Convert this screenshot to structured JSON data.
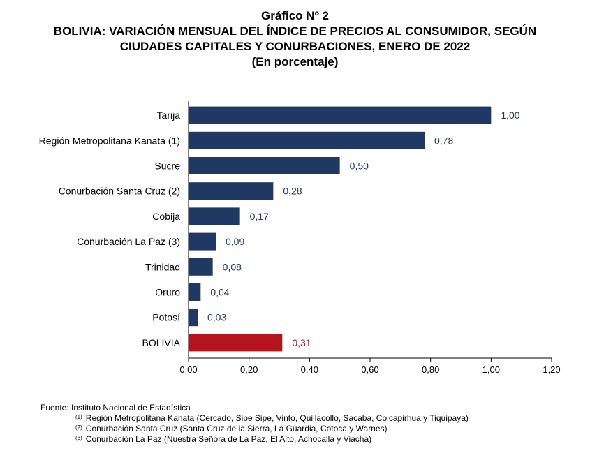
{
  "header": {
    "line1": "Gráfico Nº 2",
    "line2": "BOLIVIA: VARIACIÓN MENSUAL DEL ÍNDICE DE PRECIOS AL CONSUMIDOR, SEGÚN",
    "line3": "CIUDADES CAPITALES Y CONURBACIONES, ENERO DE 2022",
    "line4": "(En porcentaje)"
  },
  "chart_data": {
    "type": "bar",
    "orientation": "horizontal",
    "title": "Gráfico Nº 2 BOLIVIA: VARIACIÓN MENSUAL DEL ÍNDICE DE PRECIOS AL CONSUMIDOR, SEGÚN CIUDADES CAPITALES Y CONURBACIONES, ENERO DE 2022",
    "subtitle": "(En porcentaje)",
    "categories": [
      "Tarija",
      "Región Metropolitana Kanata (1)",
      "Sucre",
      "Conurbación Santa Cruz (2)",
      "Cobija",
      "Conurbación La Paz (3)",
      "Trinidad",
      "Oruro",
      "Potosí",
      "BOLIVIA"
    ],
    "values": [
      1.0,
      0.78,
      0.5,
      0.28,
      0.17,
      0.09,
      0.08,
      0.04,
      0.03,
      0.31
    ],
    "value_labels": [
      "1,00",
      "0,78",
      "0,50",
      "0,28",
      "0,17",
      "0,09",
      "0,08",
      "0,04",
      "0,03",
      "0,31"
    ],
    "xlim": [
      0,
      1.2
    ],
    "xticks": [
      0,
      0.2,
      0.4,
      0.6,
      0.8,
      1.0,
      1.2
    ],
    "xtick_labels": [
      "0,00",
      "0,20",
      "0,40",
      "0,60",
      "0,80",
      "1,00",
      "1,20"
    ],
    "grid": false,
    "legend": "none",
    "colors": {
      "default_bar": "#1f3864",
      "highlight_bar": "#b5141e",
      "default_label": "#1f3864",
      "highlight_label": "#b5141e"
    },
    "highlight_category": "BOLIVIA"
  },
  "notes": {
    "fuente": "Fuente: Instituto Nacional de Estadística",
    "items": [
      {
        "marker": "(1)",
        "text": "Región Metropolitana Kanata (Cercado, Sipe Sipe, Vinto, Quillacollo, Sacaba, Colcapirhua y Tiquipaya)"
      },
      {
        "marker": "(2)",
        "text": "Conurbación Santa Cruz (Santa Cruz de la Sierra, La Guardia, Cotoca y Warnes)"
      },
      {
        "marker": "(3)",
        "text": "Conurbación La Paz (Nuestra Señora de La Paz, El Alto, Achocalla y Viacha)"
      }
    ]
  }
}
